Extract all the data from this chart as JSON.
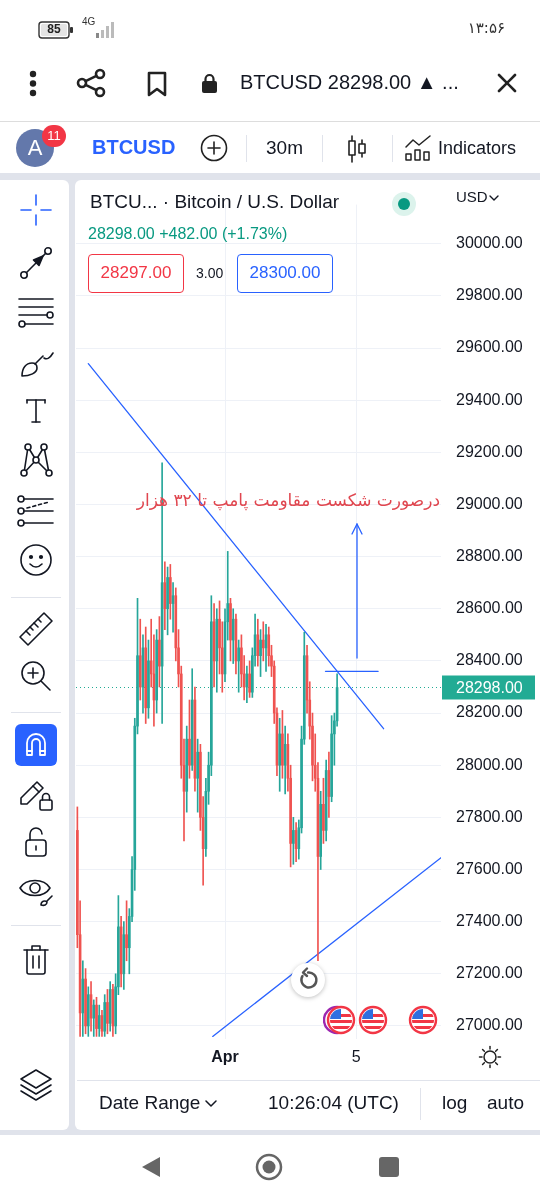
{
  "chart_data": {
    "type": "candlestick",
    "title": "BTCU... · Bitcoin / U.S. Dollar",
    "subtitle": "28298.00 +482.00 (+1.73%)",
    "x": [
      "--03-27T12:00",
      "--03-27T14:00",
      "--03-27T16:00",
      "--03-27T18:00",
      "--03-27T20:00",
      "--03-27T22:00",
      "--03-28T00:00",
      "--03-28T02:00",
      "--03-28T04:00",
      "--03-28T06:00",
      "--03-28T08:00",
      "--03-28T10:00",
      "--03-28T12:00",
      "--03-28T14:00",
      "--03-28T16:00",
      "--03-28T18:00",
      "--03-28T20:00",
      "--03-28T22:00",
      "--03-29T00:00",
      "--03-29T02:00",
      "--03-29T04:00",
      "--03-29T06:00",
      "--03-29T08:00",
      "--03-29T10:00",
      "--03-29T12:00",
      "--03-29T14:00",
      "--03-29T16:00",
      "--03-29T18:00",
      "--03-29T20:00",
      "--03-29T22:00",
      "--03-30T00:00",
      "--03-30T02:00",
      "--03-30T04:00",
      "--03-30T06:00",
      "--03-30T08:00",
      "--03-30T10:00",
      "--03-30T12:00",
      "--03-30T14:00",
      "--03-30T16:00",
      "--03-30T18:00",
      "--03-30T20:00",
      "--03-30T22:00",
      "--03-31T00:00",
      "--03-31T02:00",
      "--03-31T04:00",
      "--03-31T06:00",
      "--03-31T08:00",
      "--03-31T10:00",
      "--03-31T12:00",
      "--03-31T14:00",
      "--03-31T16:00",
      "--03-31T18:00",
      "--03-31T20:00",
      "--03-31T22:00",
      "--04-01T00:00",
      "--04-01T02:00",
      "--04-01T04:00",
      "--04-01T06:00",
      "--04-01T08:00",
      "--04-01T10:00",
      "--04-01T12:00",
      "--04-01T14:00",
      "--04-01T16:00",
      "--04-01T18:00",
      "--04-01T20:00",
      "--04-01T22:00",
      "--04-02T00:00",
      "--04-02T02:00",
      "--04-02T04:00",
      "--04-02T06:00",
      "--04-02T08:00",
      "--04-02T10:00",
      "--04-02T12:00",
      "--04-02T14:00",
      "--04-02T16:00",
      "--04-02T18:00",
      "--04-02T20:00",
      "--04-02T22:00",
      "--04-03T00:00",
      "--04-03T02:00",
      "--04-03T04:00",
      "--04-03T06:00",
      "--04-03T08:00",
      "--04-03T10:00",
      "--04-03T12:00",
      "--04-03T14:00",
      "--04-03T16:00",
      "--04-03T18:00",
      "--04-03T20:00",
      "--04-03T22:00",
      "--04-04T00:00",
      "--04-04T02:00",
      "--04-04T04:00",
      "--04-04T06:00",
      "--04-04T08:00",
      "--04-04T10:00"
    ],
    "ohlc": [
      [
        27750,
        27840,
        27300,
        27350
      ],
      [
        27350,
        27480,
        26960,
        27050
      ],
      [
        27050,
        27250,
        26960,
        27180
      ],
      [
        27180,
        27220,
        26970,
        27000
      ],
      [
        27000,
        27150,
        26960,
        27120
      ],
      [
        27120,
        27170,
        26980,
        27030
      ],
      [
        27030,
        27100,
        26960,
        27080
      ],
      [
        27080,
        27110,
        26960,
        26990
      ],
      [
        26990,
        27080,
        26960,
        27040
      ],
      [
        27040,
        27060,
        26960,
        26980
      ],
      [
        26980,
        27120,
        26960,
        27090
      ],
      [
        27090,
        27140,
        26970,
        27010
      ],
      [
        27010,
        27170,
        26980,
        27140
      ],
      [
        27140,
        27160,
        26960,
        27000
      ],
      [
        27000,
        27200,
        26970,
        27150
      ],
      [
        27150,
        27500,
        27120,
        27380
      ],
      [
        27380,
        27420,
        27150,
        27200
      ],
      [
        27200,
        27400,
        27140,
        27350
      ],
      [
        27350,
        27480,
        27250,
        27300
      ],
      [
        27300,
        27450,
        27200,
        27420
      ],
      [
        27420,
        27650,
        27400,
        27600
      ],
      [
        27600,
        28180,
        27520,
        28150
      ],
      [
        28150,
        28640,
        28120,
        28420
      ],
      [
        28420,
        28560,
        28250,
        28300
      ],
      [
        28300,
        28500,
        28200,
        28450
      ],
      [
        28450,
        28530,
        28160,
        28220
      ],
      [
        28220,
        28480,
        28180,
        28400
      ],
      [
        28400,
        28560,
        28300,
        28350
      ],
      [
        28350,
        28500,
        28150,
        28250
      ],
      [
        28250,
        28520,
        28200,
        28480
      ],
      [
        28480,
        28570,
        28300,
        28380
      ],
      [
        28380,
        29160,
        28160,
        28700
      ],
      [
        28700,
        28780,
        28520,
        28600
      ],
      [
        28600,
        28760,
        28500,
        28720
      ],
      [
        28720,
        28770,
        28560,
        28620
      ],
      [
        28620,
        28700,
        28510,
        28650
      ],
      [
        28650,
        28680,
        28400,
        28450
      ],
      [
        28450,
        28520,
        28300,
        28350
      ],
      [
        28350,
        28380,
        27950,
        28000
      ],
      [
        28000,
        28100,
        27710,
        27900
      ],
      [
        27900,
        28150,
        27820,
        28100
      ],
      [
        28100,
        28250,
        27950,
        28000
      ],
      [
        28000,
        28370,
        27980,
        28250
      ],
      [
        28250,
        28300,
        27900,
        27950
      ],
      [
        27950,
        28100,
        27820,
        28050
      ],
      [
        28050,
        28080,
        27750,
        27800
      ],
      [
        27800,
        27880,
        27540,
        27680
      ],
      [
        27680,
        27950,
        27650,
        27900
      ],
      [
        27900,
        28050,
        27850,
        28000
      ],
      [
        28000,
        28650,
        27960,
        28550
      ],
      [
        28550,
        28620,
        28300,
        28400
      ],
      [
        28400,
        28600,
        28280,
        28560
      ],
      [
        28560,
        28630,
        28350,
        28450
      ],
      [
        28450,
        28550,
        28280,
        28350
      ],
      [
        28350,
        28600,
        28320,
        28550
      ],
      [
        28550,
        28820,
        28480,
        28620
      ],
      [
        28620,
        28640,
        28400,
        28480
      ],
      [
        28480,
        28600,
        28390,
        28560
      ],
      [
        28560,
        28580,
        28350,
        28400
      ],
      [
        28400,
        28480,
        28280,
        28450
      ],
      [
        28450,
        28500,
        28300,
        28350
      ],
      [
        28350,
        28420,
        28250,
        28300
      ],
      [
        28300,
        28380,
        28240,
        28350
      ],
      [
        28350,
        28400,
        28260,
        28280
      ],
      [
        28280,
        28450,
        28260,
        28420
      ],
      [
        28420,
        28580,
        28380,
        28500
      ],
      [
        28500,
        28560,
        28380,
        28420
      ],
      [
        28420,
        28520,
        28340,
        28480
      ],
      [
        28480,
        28550,
        28400,
        28450
      ],
      [
        28450,
        28540,
        28360,
        28500
      ],
      [
        28500,
        28530,
        28380,
        28420
      ],
      [
        28420,
        28460,
        28340,
        28380
      ],
      [
        28380,
        28400,
        28160,
        28200
      ],
      [
        28200,
        28220,
        27960,
        28000
      ],
      [
        28000,
        28180,
        27900,
        28120
      ],
      [
        28120,
        28210,
        27950,
        28000
      ],
      [
        28000,
        28150,
        27890,
        28080
      ],
      [
        28080,
        28120,
        27900,
        27950
      ],
      [
        27950,
        28000,
        27610,
        27700
      ],
      [
        27700,
        27800,
        27620,
        27750
      ],
      [
        27750,
        27780,
        27630,
        27680
      ],
      [
        27680,
        27790,
        27640,
        27760
      ],
      [
        27760,
        28150,
        27740,
        28100
      ],
      [
        28100,
        28510,
        28080,
        28420
      ],
      [
        28420,
        28460,
        28200,
        28250
      ],
      [
        28250,
        28320,
        28100,
        28150
      ],
      [
        28150,
        28200,
        27940,
        28000
      ],
      [
        28000,
        28120,
        27900,
        27950
      ],
      [
        27950,
        28010,
        27250,
        27650
      ],
      [
        27650,
        27900,
        27600,
        27850
      ],
      [
        27850,
        27950,
        27700,
        27750
      ],
      [
        27750,
        28020,
        27710,
        27980
      ],
      [
        27980,
        28050,
        27800,
        27880
      ],
      [
        27880,
        28190,
        27860,
        28120
      ],
      [
        28120,
        28200,
        28000,
        28170
      ],
      [
        28170,
        28350,
        28150,
        28298
      ]
    ],
    "colors": [
      "#ef5350",
      "#ef5350",
      "#26a69a",
      "#ef5350",
      "#26a69a",
      "#ef5350",
      "#26a69a",
      "#ef5350",
      "#26a69a",
      "#ef5350",
      "#26a69a",
      "#ef5350",
      "#26a69a",
      "#ef5350",
      "#26a69a",
      "#26a69a",
      "#ef5350",
      "#26a69a",
      "#ef5350",
      "#26a69a",
      "#26a69a",
      "#26a69a",
      "#26a69a",
      "#ef5350",
      "#26a69a",
      "#ef5350",
      "#26a69a",
      "#ef5350",
      "#ef5350",
      "#26a69a",
      "#ef5350",
      "#26a69a",
      "#ef5350",
      "#26a69a",
      "#ef5350",
      "#26a69a",
      "#ef5350",
      "#ef5350",
      "#ef5350",
      "#ef5350",
      "#26a69a",
      "#ef5350",
      "#26a69a",
      "#ef5350",
      "#26a69a",
      "#ef5350",
      "#ef5350",
      "#26a69a",
      "#26a69a",
      "#26a69a",
      "#ef5350",
      "#26a69a",
      "#ef5350",
      "#ef5350",
      "#26a69a",
      "#26a69a",
      "#ef5350",
      "#26a69a",
      "#ef5350",
      "#26a69a",
      "#ef5350",
      "#ef5350",
      "#26a69a",
      "#ef5350",
      "#26a69a",
      "#26a69a",
      "#ef5350",
      "#26a69a",
      "#ef5350",
      "#26a69a",
      "#ef5350",
      "#ef5350",
      "#ef5350",
      "#ef5350",
      "#26a69a",
      "#ef5350",
      "#26a69a",
      "#ef5350",
      "#ef5350",
      "#26a69a",
      "#ef5350",
      "#26a69a",
      "#26a69a",
      "#26a69a",
      "#ef5350",
      "#ef5350",
      "#ef5350",
      "#ef5350",
      "#ef5350",
      "#26a69a",
      "#ef5350",
      "#26a69a",
      "#ef5350",
      "#26a69a",
      "#26a69a",
      "#26a69a"
    ],
    "series": [
      {
        "type": "line",
        "color": "#2962ff",
        "x": [
          "--03-27T20:00",
          "--04-05T20:00"
        ],
        "values": [
          29540,
          28140
        ]
      },
      {
        "type": "line",
        "color": "#2962ff",
        "x": [
          "--03-31T15:00",
          "--04-07T14:00"
        ],
        "values": [
          26960,
          27645
        ]
      },
      {
        "type": "line",
        "color": "#2962ff",
        "x": [
          "--04-04T01:30",
          "--04-05T16:00"
        ],
        "values": [
          28360,
          28360
        ]
      }
    ],
    "xlim": [
      "--03-27T11:00",
      "--04-07T14:00"
    ],
    "xticks": [
      {
        "value": "--04-01",
        "label": "Apr"
      },
      {
        "value": "--04-05",
        "label": "5"
      }
    ],
    "ylim": [
      26950,
      30150
    ],
    "yticks": [
      {
        "value": 27000,
        "label": "27000.00"
      },
      {
        "value": 27200,
        "label": "27200.00"
      },
      {
        "value": 27400,
        "label": "27400.00"
      },
      {
        "value": 27600,
        "label": "27600.00"
      },
      {
        "value": 27800,
        "label": "27800.00"
      },
      {
        "value": 28000,
        "label": "28000.00"
      },
      {
        "value": 28200,
        "label": "28200.00"
      },
      {
        "value": 28400,
        "label": "28400.00"
      },
      {
        "value": 28600,
        "label": "28600.00"
      },
      {
        "value": 28800,
        "label": "28800.00"
      },
      {
        "value": 29000,
        "label": "29000.00"
      },
      {
        "value": 29200,
        "label": "29200.00"
      },
      {
        "value": 29400,
        "label": "29400.00"
      },
      {
        "value": 29600,
        "label": "29600.00"
      },
      {
        "value": 29800,
        "label": "29800.00"
      },
      {
        "value": 30000,
        "label": "30000.00"
      }
    ],
    "grid": true,
    "ref_lines": [
      {
        "axis": "y",
        "value": 28298,
        "label": "28298.00",
        "color": "#22ab94",
        "line_style": "dotted"
      }
    ],
    "annotations": [
      "۱۳:۵۶",
      "85",
      "4G",
      "BTCUSD 28298.00 ▲ ...",
      "A",
      "11",
      "BTCUSD",
      "30m",
      "Indicators",
      "28297.00",
      "3.00",
      "28300.00",
      "USD",
      "درصورت شکست مقاومت پامپ تا ۳۲ هزار",
      "Date Range",
      "10:26:04 (UTC)",
      "log",
      "auto"
    ]
  }
}
